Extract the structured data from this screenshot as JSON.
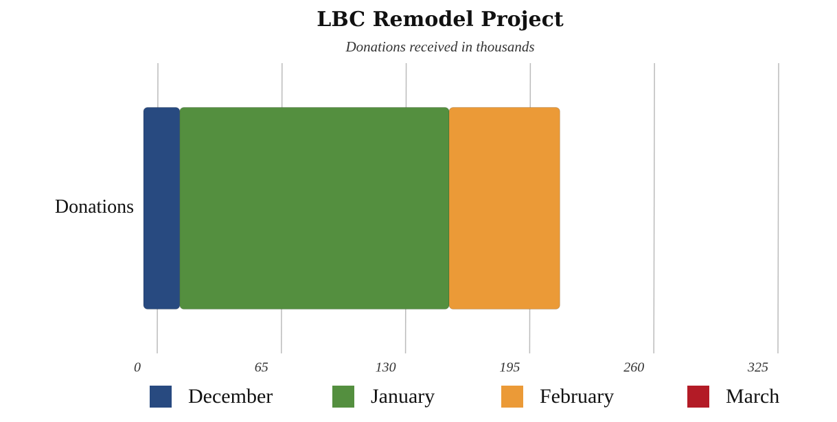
{
  "chart_data": {
    "type": "stacked-bar-horizontal",
    "title": "LBC Remodel Project",
    "subtitle": "Donations received in thousands",
    "categories": [
      "Donations"
    ],
    "series": [
      {
        "name": "December",
        "color": "#284a80",
        "values": [
          19
        ]
      },
      {
        "name": "January",
        "color": "#548f3f",
        "values": [
          141
        ]
      },
      {
        "name": "February",
        "color": "#eb9a37",
        "values": [
          58
        ]
      },
      {
        "name": "March",
        "color": "#b31b26",
        "values": [
          0
        ]
      }
    ],
    "xlim": [
      0,
      325
    ],
    "xticks": [
      0,
      65,
      130,
      195,
      260,
      325
    ],
    "grid": true
  }
}
